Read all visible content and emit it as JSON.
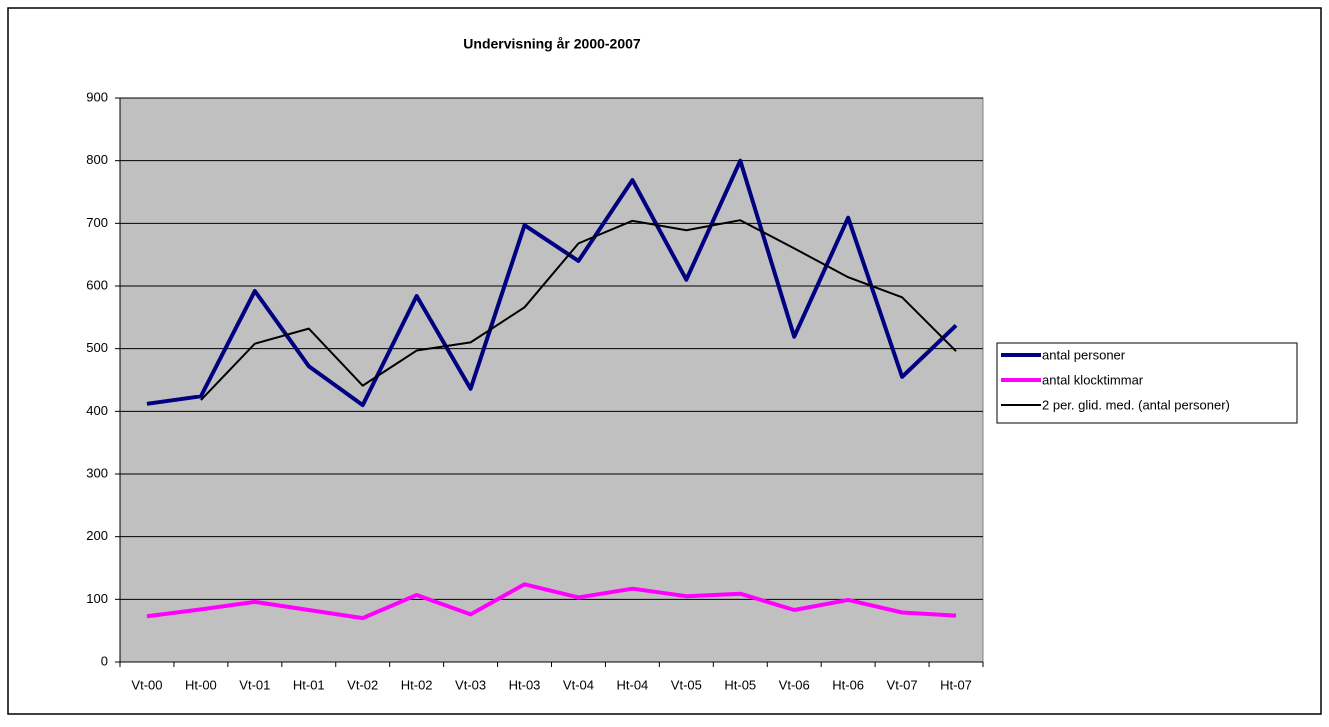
{
  "chart_data": {
    "type": "line",
    "title": "Undervisning år 2000-2007",
    "categories": [
      "Vt-00",
      "Ht-00",
      "Vt-01",
      "Ht-01",
      "Vt-02",
      "Ht-02",
      "Vt-03",
      "Ht-03",
      "Vt-04",
      "Ht-04",
      "Vt-05",
      "Ht-05",
      "Vt-06",
      "Ht-06",
      "Vt-07",
      "Ht-07"
    ],
    "series": [
      {
        "name": "antal personer",
        "color": "#000080",
        "values": [
          412,
          424,
          592,
          472,
          410,
          584,
          436,
          697,
          640,
          769,
          610,
          800,
          519,
          709,
          455,
          537
        ]
      },
      {
        "name": "antal klocktimmar",
        "color": "#ff00ff",
        "values": [
          73,
          84,
          96,
          83,
          70,
          107,
          76,
          124,
          103,
          117,
          105,
          109,
          83,
          99,
          79,
          74
        ]
      },
      {
        "name": "2 per. glid. med. (antal personer)",
        "color": "#000000",
        "values": [
          null,
          418,
          508,
          532,
          441,
          497,
          510,
          566,
          668,
          704,
          689,
          705,
          660,
          614,
          582,
          496
        ]
      }
    ],
    "ylim": [
      0,
      900
    ],
    "yticks": [
      0,
      100,
      200,
      300,
      400,
      500,
      600,
      700,
      800,
      900
    ],
    "grid": true,
    "legend": "right"
  }
}
